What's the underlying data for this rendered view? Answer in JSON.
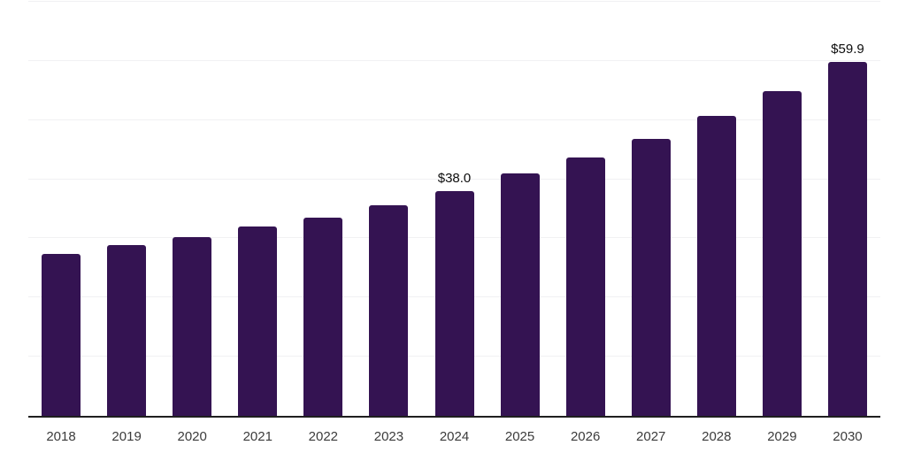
{
  "chart_data": {
    "type": "bar",
    "title": "",
    "xlabel": "",
    "ylabel": "",
    "categories": [
      "2018",
      "2019",
      "2020",
      "2021",
      "2022",
      "2023",
      "2024",
      "2025",
      "2026",
      "2027",
      "2028",
      "2029",
      "2030"
    ],
    "values": [
      27.4,
      28.8,
      30.2,
      32.0,
      33.5,
      35.6,
      38.0,
      41.0,
      43.7,
      46.8,
      50.7,
      54.9,
      59.9
    ],
    "point_labels": [
      {
        "index": 6,
        "text": "$38.0"
      },
      {
        "index": 12,
        "text": "$59.9"
      }
    ],
    "ylim": [
      0,
      70
    ],
    "grid": true,
    "gridline_step": 10,
    "legend_position": "none",
    "colors": {
      "bar": "#341352",
      "grid": "#f1f1f3",
      "axis": "#1f1f1f",
      "x_label": "#3b3b3b",
      "value_label": "#0c0c0c",
      "background": "#ffffff"
    }
  }
}
